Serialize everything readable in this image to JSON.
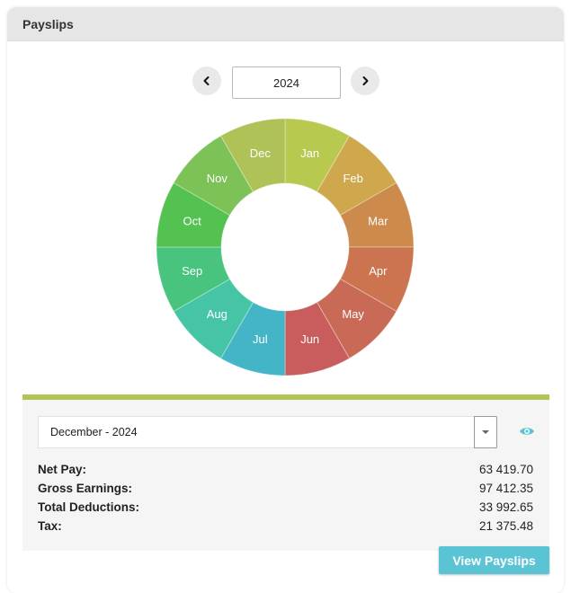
{
  "panel": {
    "title": "Payslips"
  },
  "year_nav": {
    "year": "2024",
    "prev_icon": "chevron-left-icon",
    "next_icon": "chevron-right-icon"
  },
  "months": [
    {
      "label": "Jan",
      "color": "#b9c94f"
    },
    {
      "label": "Feb",
      "color": "#cfa84e"
    },
    {
      "label": "Mar",
      "color": "#cc8a4c"
    },
    {
      "label": "Apr",
      "color": "#cc7450"
    },
    {
      "label": "May",
      "color": "#c96a56"
    },
    {
      "label": "Jun",
      "color": "#c95d5d"
    },
    {
      "label": "Jul",
      "color": "#43b5c6"
    },
    {
      "label": "Aug",
      "color": "#45c5a6"
    },
    {
      "label": "Sep",
      "color": "#48c47f"
    },
    {
      "label": "Oct",
      "color": "#54c250"
    },
    {
      "label": "Nov",
      "color": "#7dc257"
    },
    {
      "label": "Dec",
      "color": "#afc257"
    }
  ],
  "details": {
    "selected_period": "December - 2024",
    "accent_color": "#b4c454",
    "rows": [
      {
        "label": "Net Pay:",
        "value": "63 419.70"
      },
      {
        "label": "Gross Earnings:",
        "value": "97 412.35"
      },
      {
        "label": "Total Deductions:",
        "value": "33 992.65"
      },
      {
        "label": "Tax:",
        "value": "21 375.48"
      }
    ]
  },
  "actions": {
    "view_payslips": "View Payslips",
    "view_color": "#5bc4d4"
  }
}
